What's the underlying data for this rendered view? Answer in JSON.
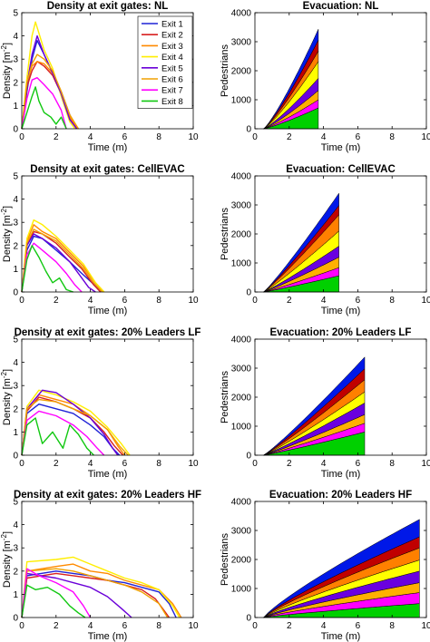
{
  "exit_colors": [
    "#1f22d6",
    "#d82020",
    "#ff8a00",
    "#ffee00",
    "#6a00d8",
    "#f0a000",
    "#ff00ff",
    "#10c810"
  ],
  "evac_colors": [
    "#00d000",
    "#ff00ff",
    "#ffb000",
    "#6a00e0",
    "#ffff00",
    "#ff8000",
    "#c00000",
    "#0018e8"
  ],
  "chart_data": [
    {
      "type": "line",
      "title": "Density at exit gates: NL",
      "xlabel": "Time (m)",
      "ylabel": "Density [m^{-2}]",
      "xlim": [
        0,
        10
      ],
      "ylim": [
        0,
        5
      ],
      "xticks": [
        0,
        2,
        4,
        6,
        8,
        10
      ],
      "yticks": [
        0,
        1,
        2,
        3,
        4,
        5
      ],
      "grid": false,
      "legend": "top-right",
      "series": [
        {
          "name": "Exit 1",
          "x": [
            0,
            0.3,
            0.6,
            0.9,
            1.3,
            1.8,
            2.3,
            2.8,
            3.2
          ],
          "y": [
            0,
            1.6,
            3.0,
            3.8,
            3.2,
            2.4,
            1.6,
            0.6,
            0
          ]
        },
        {
          "name": "Exit 2",
          "x": [
            0,
            0.3,
            0.6,
            0.9,
            1.3,
            1.8,
            2.3,
            2.8,
            3.2
          ],
          "y": [
            0,
            1.8,
            2.5,
            2.9,
            2.7,
            2.3,
            1.5,
            0.5,
            0
          ]
        },
        {
          "name": "Exit 3",
          "x": [
            0,
            0.3,
            0.6,
            0.9,
            1.3,
            1.8,
            2.3,
            2.8,
            3.3
          ],
          "y": [
            0,
            2.0,
            2.7,
            2.9,
            2.8,
            2.4,
            1.6,
            0.5,
            0
          ]
        },
        {
          "name": "Exit 4",
          "x": [
            0,
            0.3,
            0.6,
            0.8,
            1.3,
            1.8,
            2.3,
            2.8,
            3.1
          ],
          "y": [
            0,
            2.2,
            4.0,
            4.6,
            3.4,
            2.6,
            1.4,
            0.3,
            0
          ]
        },
        {
          "name": "Exit 5",
          "x": [
            0,
            0.3,
            0.6,
            0.9,
            1.3,
            1.8,
            2.3,
            2.8,
            3.2
          ],
          "y": [
            0,
            1.9,
            3.2,
            4.0,
            3.2,
            2.4,
            1.5,
            0.4,
            0
          ]
        },
        {
          "name": "Exit 6",
          "x": [
            0,
            0.3,
            0.6,
            0.9,
            1.3,
            1.8,
            2.3,
            2.8,
            3.3
          ],
          "y": [
            0,
            2.0,
            2.8,
            3.2,
            3.0,
            2.5,
            1.6,
            0.6,
            0
          ]
        },
        {
          "name": "Exit 7",
          "x": [
            0,
            0.3,
            0.6,
            0.9,
            1.3,
            1.8,
            2.3,
            2.6
          ],
          "y": [
            0,
            1.3,
            2.1,
            2.2,
            1.9,
            1.5,
            0.8,
            0
          ]
        },
        {
          "name": "Exit 8",
          "x": [
            0,
            0.3,
            0.6,
            0.8,
            1.0,
            1.3,
            1.7,
            2.0,
            2.3,
            2.6
          ],
          "y": [
            0,
            0.7,
            1.4,
            1.8,
            1.2,
            0.7,
            0.5,
            0.2,
            0.5,
            0
          ]
        }
      ]
    },
    {
      "type": "area",
      "title": "Evacuation: NL",
      "xlabel": "Time (m)",
      "ylabel": "Pedestrians",
      "xlim": [
        0,
        10
      ],
      "ylim": [
        0,
        4000
      ],
      "xticks": [
        0,
        2,
        4,
        6,
        8,
        10
      ],
      "yticks": [
        0,
        1000,
        2000,
        3000,
        4000
      ],
      "grid": false,
      "t_start": 0.5,
      "t_end": 3.7,
      "shape_exp": 1.2,
      "totals": [
        720,
        280,
        320,
        420,
        580,
        360,
        380,
        370
      ]
    },
    {
      "type": "line",
      "title": "Density at exit gates: CellEVAC",
      "xlabel": "Time (m)",
      "ylabel": "Density [m^{-2}]",
      "xlim": [
        0,
        10
      ],
      "ylim": [
        0,
        5
      ],
      "xticks": [
        0,
        2,
        4,
        6,
        8,
        10
      ],
      "yticks": [
        0,
        1,
        2,
        3,
        4,
        5
      ],
      "grid": false,
      "series": [
        {
          "x": [
            0,
            0.3,
            0.7,
            1.2,
            2.0,
            2.8,
            3.5,
            4.1,
            4.6
          ],
          "y": [
            0,
            1.8,
            2.4,
            2.3,
            1.8,
            1.3,
            0.8,
            0.4,
            0
          ]
        },
        {
          "x": [
            0,
            0.3,
            0.7,
            1.2,
            2.0,
            2.8,
            3.5,
            4.2,
            4.6
          ],
          "y": [
            0,
            2.0,
            2.6,
            2.5,
            2.1,
            1.5,
            1.0,
            0.3,
            0
          ]
        },
        {
          "x": [
            0,
            0.3,
            0.7,
            1.2,
            2.0,
            2.8,
            3.6,
            4.3,
            4.8
          ],
          "y": [
            0,
            2.2,
            2.9,
            2.6,
            2.3,
            1.7,
            1.1,
            0.4,
            0
          ]
        },
        {
          "x": [
            0,
            0.3,
            0.7,
            1.2,
            2.0,
            2.8,
            3.6,
            4.3,
            4.8
          ],
          "y": [
            0,
            2.3,
            3.1,
            2.9,
            2.4,
            1.8,
            1.2,
            0.4,
            0
          ]
        },
        {
          "x": [
            0,
            0.3,
            0.7,
            1.2,
            2.0,
            2.8,
            3.4,
            3.9,
            4.3
          ],
          "y": [
            0,
            2.0,
            2.5,
            2.3,
            1.9,
            1.3,
            0.7,
            0.2,
            0
          ]
        },
        {
          "x": [
            0,
            0.3,
            0.7,
            1.2,
            2.0,
            2.8,
            3.6,
            4.2,
            4.7
          ],
          "y": [
            0,
            2.1,
            2.7,
            2.5,
            2.2,
            1.6,
            1.0,
            0.4,
            0
          ]
        },
        {
          "x": [
            0,
            0.3,
            0.7,
            1.2,
            2.0,
            2.6,
            3.1,
            3.5
          ],
          "y": [
            0,
            1.6,
            2.1,
            1.8,
            1.3,
            0.8,
            0.3,
            0
          ]
        },
        {
          "x": [
            0,
            0.3,
            0.6,
            1.0,
            1.4,
            1.8,
            2.2,
            2.6,
            3.0
          ],
          "y": [
            0,
            1.4,
            2.0,
            1.5,
            0.9,
            0.4,
            0.6,
            0.1,
            0
          ]
        }
      ]
    },
    {
      "type": "area",
      "title": "Evacuation: CellEVAC",
      "xlabel": "Time (m)",
      "ylabel": "Pedestrians",
      "xlim": [
        0,
        10
      ],
      "ylim": [
        0,
        4000
      ],
      "xticks": [
        0,
        2,
        4,
        6,
        8,
        10
      ],
      "yticks": [
        0,
        1000,
        2000,
        3000,
        4000
      ],
      "grid": false,
      "t_start": 0.5,
      "t_end": 4.9,
      "shape_exp": 1.1,
      "totals": [
        560,
        280,
        360,
        380,
        520,
        560,
        320,
        420
      ]
    },
    {
      "type": "line",
      "title": "Density at exit gates: 20% Leaders LF",
      "xlabel": "Time (m)",
      "ylabel": "Density [m^{-2}]",
      "xlim": [
        0,
        10
      ],
      "ylim": [
        0,
        5
      ],
      "xticks": [
        0,
        2,
        4,
        6,
        8,
        10
      ],
      "yticks": [
        0,
        1,
        2,
        3,
        4,
        5
      ],
      "grid": false,
      "series": [
        {
          "x": [
            0,
            0.3,
            1.0,
            2.0,
            3.0,
            4.0,
            4.8,
            5.3,
            5.7
          ],
          "y": [
            0,
            1.8,
            2.2,
            2.0,
            1.8,
            1.3,
            0.8,
            0.3,
            0
          ]
        },
        {
          "x": [
            0,
            0.3,
            1.0,
            2.0,
            3.0,
            4.0,
            4.8,
            5.4,
            5.9
          ],
          "y": [
            0,
            1.9,
            2.5,
            2.3,
            2.0,
            1.6,
            1.0,
            0.4,
            0
          ]
        },
        {
          "x": [
            0,
            0.3,
            1.0,
            2.0,
            3.0,
            4.0,
            5.0,
            5.6,
            6.0
          ],
          "y": [
            0,
            2.0,
            2.6,
            2.4,
            2.2,
            1.7,
            1.1,
            0.4,
            0
          ]
        },
        {
          "x": [
            0,
            0.3,
            1.0,
            2.0,
            3.0,
            4.0,
            5.0,
            5.8,
            6.3
          ],
          "y": [
            0,
            2.1,
            2.8,
            2.6,
            2.3,
            1.9,
            1.2,
            0.5,
            0
          ]
        },
        {
          "x": [
            0,
            0.3,
            1.2,
            2.0,
            3.0,
            4.0,
            4.8,
            5.3,
            5.6
          ],
          "y": [
            0,
            2.0,
            2.8,
            2.7,
            2.2,
            1.6,
            0.9,
            0.3,
            0
          ]
        },
        {
          "x": [
            0,
            0.3,
            1.0,
            2.0,
            3.0,
            4.0,
            5.0,
            5.7,
            6.2
          ],
          "y": [
            0,
            2.0,
            2.4,
            2.3,
            2.0,
            1.7,
            1.1,
            0.4,
            0
          ]
        },
        {
          "x": [
            0,
            0.3,
            1.0,
            2.0,
            3.0,
            3.8,
            4.4,
            4.8
          ],
          "y": [
            0,
            1.5,
            1.9,
            1.7,
            1.3,
            0.8,
            0.3,
            0
          ]
        },
        {
          "x": [
            0,
            0.3,
            0.8,
            1.2,
            1.8,
            2.4,
            2.8,
            3.3,
            3.8,
            4.2
          ],
          "y": [
            0,
            1.3,
            1.6,
            0.5,
            1.0,
            0.3,
            1.3,
            0.9,
            0.3,
            0
          ]
        }
      ]
    },
    {
      "type": "area",
      "title": "Evacuation: 20% Leaders LF",
      "xlabel": "Time (m)",
      "ylabel": "Pedestrians",
      "xlim": [
        0,
        10
      ],
      "ylim": [
        0,
        4000
      ],
      "xticks": [
        0,
        2,
        4,
        6,
        8,
        10
      ],
      "yticks": [
        0,
        1000,
        2000,
        3000,
        4000
      ],
      "grid": false,
      "t_start": 0.5,
      "t_end": 6.4,
      "shape_exp": 1.1,
      "totals": [
        800,
        300,
        300,
        400,
        380,
        420,
        380,
        400
      ]
    },
    {
      "type": "line",
      "title": "Density at exit gates: 20% Leaders HF",
      "xlabel": "Time (m)",
      "ylabel": "Density [m^{-2}]",
      "xlim": [
        0,
        10
      ],
      "ylim": [
        0,
        5
      ],
      "xticks": [
        0,
        2,
        4,
        6,
        8,
        10
      ],
      "yticks": [
        0,
        1,
        2,
        3,
        4,
        5
      ],
      "grid": false,
      "series": [
        {
          "x": [
            0,
            0.3,
            2.0,
            3.0,
            4.0,
            5.0,
            6.0,
            7.0,
            8.0,
            8.6,
            9.0
          ],
          "y": [
            0,
            1.8,
            2.0,
            1.9,
            1.8,
            1.6,
            1.5,
            1.3,
            1.1,
            0.6,
            0
          ]
        },
        {
          "x": [
            0,
            0.3,
            2.0,
            3.0,
            4.0,
            5.0,
            6.0,
            7.0,
            7.8,
            8.3,
            8.6
          ],
          "y": [
            0,
            1.7,
            1.9,
            1.8,
            1.7,
            1.6,
            1.4,
            1.2,
            0.8,
            0.3,
            0
          ]
        },
        {
          "x": [
            0,
            0.3,
            2.0,
            3.0,
            4.0,
            5.0,
            6.0,
            7.0,
            8.0,
            8.8,
            9.3
          ],
          "y": [
            0,
            2.0,
            2.2,
            2.3,
            2.0,
            1.9,
            1.6,
            1.4,
            1.2,
            0.6,
            0
          ]
        },
        {
          "x": [
            0,
            0.3,
            2.0,
            3.0,
            4.0,
            5.0,
            6.0,
            7.0,
            8.0,
            8.8,
            9.2
          ],
          "y": [
            0,
            2.4,
            2.5,
            2.6,
            2.3,
            2.0,
            1.7,
            1.5,
            1.2,
            0.5,
            0
          ]
        },
        {
          "x": [
            0,
            0.3,
            2.0,
            3.0,
            4.0,
            5.0,
            5.8,
            6.4
          ],
          "y": [
            0,
            1.9,
            1.7,
            1.5,
            1.3,
            0.9,
            0.4,
            0
          ]
        },
        {
          "x": [
            0,
            0.3,
            2.0,
            3.0,
            4.0,
            5.0,
            6.0,
            7.0,
            8.0,
            8.5
          ],
          "y": [
            0,
            2.0,
            2.1,
            2.0,
            1.8,
            1.6,
            1.4,
            1.1,
            0.6,
            0
          ]
        },
        {
          "x": [
            0,
            0.3,
            1.0,
            2.0,
            3.0,
            3.6,
            4.0
          ],
          "y": [
            0,
            2.1,
            1.8,
            1.5,
            1.1,
            0.5,
            0
          ]
        },
        {
          "x": [
            0,
            0.3,
            0.8,
            1.5,
            2.2,
            2.8,
            3.3,
            3.7
          ],
          "y": [
            0,
            1.4,
            1.2,
            1.3,
            1.0,
            0.5,
            0.2,
            0
          ]
        }
      ]
    },
    {
      "type": "area",
      "title": "Evacuation: 20% Leaders HF",
      "xlabel": "Time (m)",
      "ylabel": "Pedestrians",
      "xlim": [
        0,
        10
      ],
      "ylim": [
        0,
        4000
      ],
      "xticks": [
        0,
        2,
        4,
        6,
        8,
        10
      ],
      "yticks": [
        0,
        1000,
        2000,
        3000,
        4000
      ],
      "grid": false,
      "t_start": 0.5,
      "t_end": 9.6,
      "shape_exp": 0.85,
      "totals": [
        480,
        380,
        340,
        400,
        380,
        420,
        380,
        600
      ]
    }
  ]
}
